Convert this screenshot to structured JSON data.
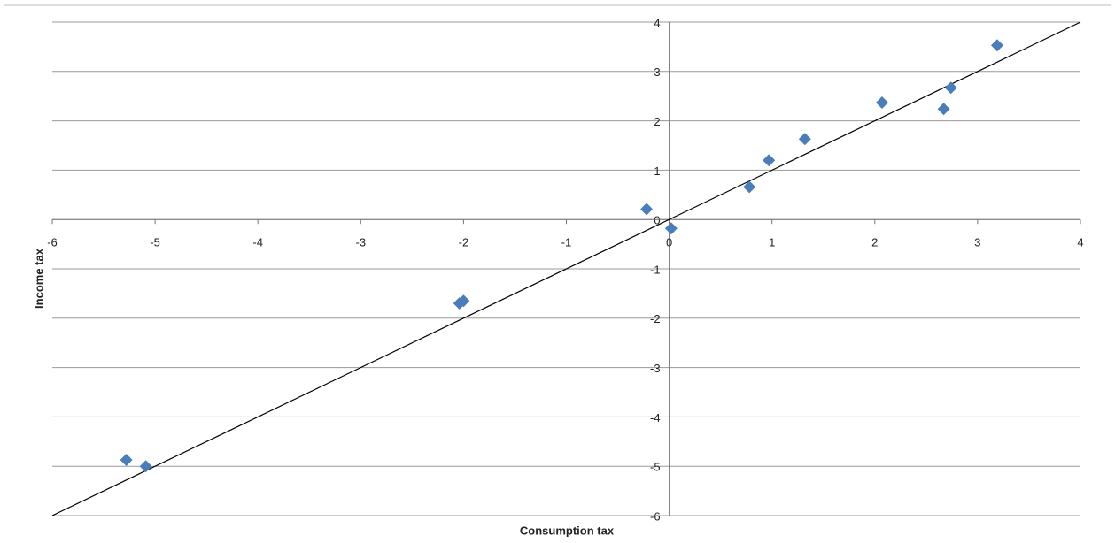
{
  "chart_data": {
    "type": "scatter",
    "x_label": "Consumption tax",
    "y_label": "Income tax",
    "series": [
      {
        "color": "#4a7ebb",
        "x": [
          -5.28,
          -5.09,
          -2.04,
          -2.0,
          -0.22,
          0.02,
          0.78,
          0.97,
          1.32,
          2.07,
          2.67,
          2.74,
          3.19
        ],
        "y": [
          -4.87,
          -5.0,
          -1.7,
          -1.65,
          0.21,
          -0.18,
          0.66,
          1.2,
          1.63,
          2.37,
          2.24,
          2.67,
          3.53
        ]
      }
    ],
    "trendline": {
      "color": "#000000",
      "x": [
        -6,
        4
      ],
      "y": [
        -6,
        4
      ]
    },
    "xlim": [
      -6,
      4
    ],
    "ylim": [
      -6,
      4
    ],
    "xticks": [
      -6,
      -5,
      -4,
      -3,
      -2,
      -1,
      0,
      1,
      2,
      3,
      4
    ],
    "yticks": [
      -6,
      -5,
      -4,
      -3,
      -2,
      -1,
      0,
      1,
      2,
      3,
      4
    ],
    "grid": true
  }
}
